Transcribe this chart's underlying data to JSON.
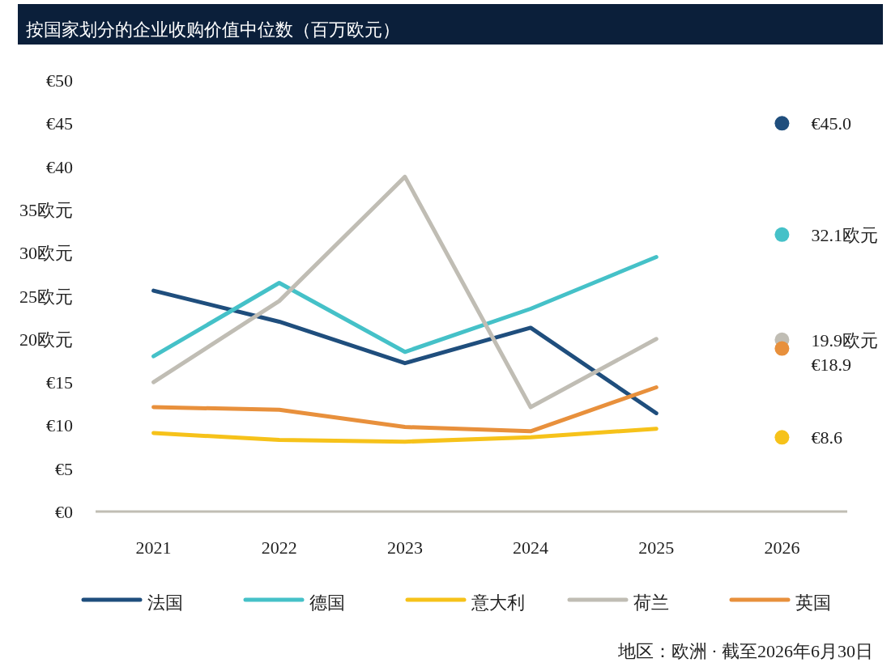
{
  "chart_data": {
    "type": "line",
    "title": "按国家划分的企业收购价值中位数（百万欧元）",
    "categories": [
      "2021",
      "2022",
      "2023",
      "2024",
      "2025",
      "2026"
    ],
    "series": [
      {
        "name": "法国",
        "color": "#1f4e7d",
        "values": [
          25.6,
          22.0,
          17.2,
          21.3,
          11.4,
          null
        ]
      },
      {
        "name": "德国",
        "color": "#45c1c8",
        "values": [
          18.0,
          26.5,
          18.5,
          23.5,
          29.5,
          null
        ]
      },
      {
        "name": "意大利",
        "color": "#f6c21a",
        "values": [
          9.1,
          8.3,
          8.1,
          8.6,
          9.6,
          null
        ]
      },
      {
        "name": "荷兰",
        "color": "#c0bdb4",
        "values": [
          15.0,
          24.4,
          38.8,
          12.1,
          20.0,
          null
        ]
      },
      {
        "name": "英国",
        "color": "#e8903c",
        "values": [
          12.1,
          11.8,
          9.8,
          9.3,
          14.4,
          null
        ]
      },
      {
        "type": "scatter",
        "marker": "circle",
        "color": "#1f4e7d",
        "values": [
          null,
          null,
          null,
          null,
          null,
          45.0
        ],
        "value_labels": [
          null,
          null,
          null,
          null,
          null,
          "€45.0"
        ]
      },
      {
        "type": "scatter",
        "marker": "circle",
        "color": "#45c1c8",
        "values": [
          null,
          null,
          null,
          null,
          null,
          32.1
        ],
        "value_labels": [
          null,
          null,
          null,
          null,
          null,
          "32.1欧元"
        ]
      },
      {
        "type": "scatter",
        "marker": "circle",
        "color": "#c0bdb4",
        "values": [
          null,
          null,
          null,
          null,
          null,
          19.9
        ],
        "value_labels": [
          null,
          null,
          null,
          null,
          null,
          "19.9欧元"
        ]
      },
      {
        "type": "scatter",
        "marker": "circle",
        "color": "#e8903c",
        "values": [
          null,
          null,
          null,
          null,
          null,
          18.9
        ],
        "value_labels": [
          null,
          null,
          null,
          null,
          null,
          "€18.9"
        ]
      },
      {
        "type": "scatter",
        "marker": "circle",
        "color": "#f6c21a",
        "values": [
          null,
          null,
          null,
          null,
          null,
          8.6
        ],
        "value_labels": [
          null,
          null,
          null,
          null,
          null,
          "€8.6"
        ]
      }
    ],
    "ylim": [
      0,
      50
    ],
    "yticks": [
      {
        "value": 0,
        "label": "€0"
      },
      {
        "value": 5,
        "label": "€5"
      },
      {
        "value": 10,
        "label": "€10"
      },
      {
        "value": 15,
        "label": "€15"
      },
      {
        "value": 20,
        "label": "20欧元"
      },
      {
        "value": 25,
        "label": "25欧元"
      },
      {
        "value": 30,
        "label": "30欧元"
      },
      {
        "value": 35,
        "label": "35欧元"
      },
      {
        "value": 40,
        "label": "€40"
      },
      {
        "value": 45,
        "label": "€45"
      },
      {
        "value": 50,
        "label": "€50"
      }
    ],
    "grid": false,
    "legend": "bottom",
    "line_style": "solid",
    "annotations": [
      "地区：欧洲 · 截至2026年6月30日"
    ]
  }
}
